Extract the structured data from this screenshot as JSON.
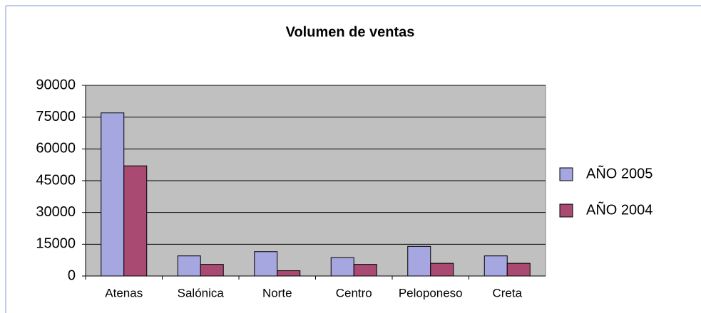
{
  "chart_data": {
    "type": "bar",
    "title": "Volumen de ventas",
    "categories": [
      "Atenas",
      "Salónica",
      "Norte",
      "Centro",
      "Peloponeso",
      "Creta"
    ],
    "series": [
      {
        "name": "AÑO 2005",
        "color": "#a6a6e0",
        "values": [
          77000,
          9500,
          11500,
          8700,
          14000,
          9500
        ]
      },
      {
        "name": "AÑO 2004",
        "color": "#a84a72",
        "values": [
          52000,
          5500,
          2500,
          5500,
          6000,
          6000
        ]
      }
    ],
    "ylim": [
      0,
      90000
    ],
    "yticks": [
      0,
      15000,
      30000,
      45000,
      60000,
      75000,
      90000
    ],
    "grid": true,
    "legend": "right"
  }
}
